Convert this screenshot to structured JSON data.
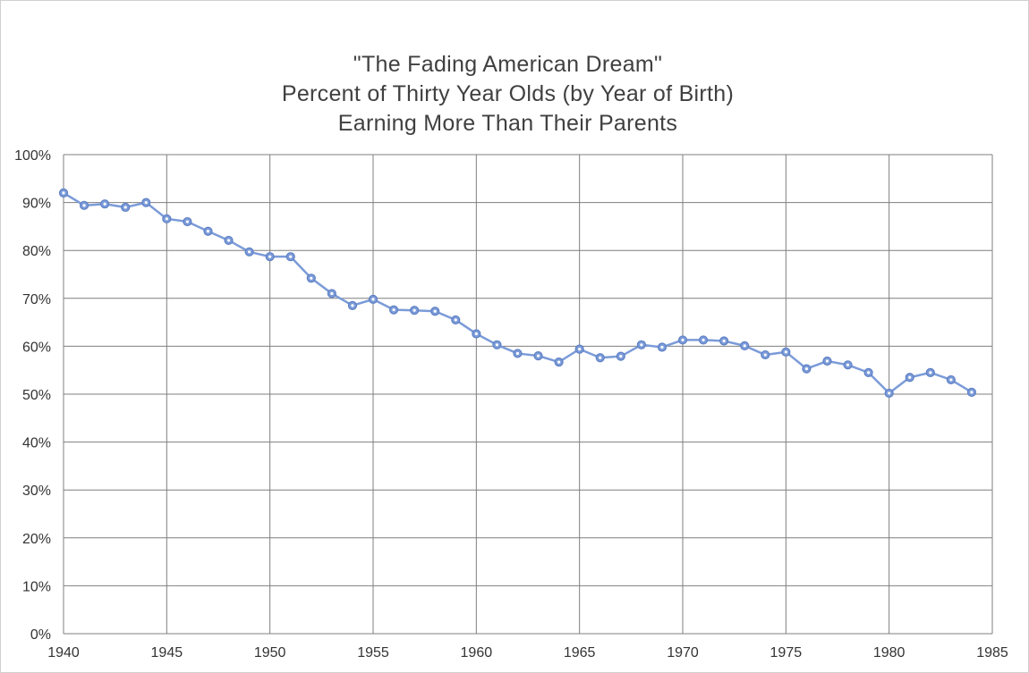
{
  "chart_data": {
    "type": "line",
    "title_lines": [
      "\"The Fading American Dream\"",
      "Percent of Thirty Year Olds (by Year of Birth)",
      "Earning More Than Their Parents"
    ],
    "xlabel": "",
    "ylabel": "",
    "xlim": [
      1940,
      1985
    ],
    "ylim": [
      0,
      100
    ],
    "x_ticks": [
      "1940",
      "1945",
      "1950",
      "1955",
      "1960",
      "1965",
      "1970",
      "1975",
      "1980",
      "1985"
    ],
    "y_ticks": [
      "0%",
      "10%",
      "20%",
      "30%",
      "40%",
      "50%",
      "60%",
      "70%",
      "80%",
      "90%",
      "100%"
    ],
    "grid": true,
    "legend": "none",
    "x": [
      1940,
      1941,
      1942,
      1943,
      1944,
      1945,
      1946,
      1947,
      1948,
      1949,
      1950,
      1951,
      1952,
      1953,
      1954,
      1955,
      1956,
      1957,
      1958,
      1959,
      1960,
      1961,
      1962,
      1963,
      1964,
      1965,
      1966,
      1967,
      1968,
      1969,
      1970,
      1971,
      1972,
      1973,
      1974,
      1975,
      1976,
      1977,
      1978,
      1979,
      1980,
      1981,
      1982,
      1983,
      1984
    ],
    "series": [
      {
        "color": "#7b9bd8",
        "values": [
          92,
          89.4,
          89.7,
          89,
          90,
          86.6,
          86,
          84,
          82.1,
          79.7,
          78.7,
          78.7,
          74.2,
          71,
          68.5,
          69.8,
          67.6,
          67.5,
          67.3,
          65.5,
          62.6,
          60.3,
          58.5,
          58,
          56.7,
          59.4,
          57.6,
          57.9,
          60.3,
          59.8,
          61.3,
          61.3,
          61.1,
          60.1,
          58.2,
          58.8,
          55.3,
          56.9,
          56.1,
          54.5,
          50.2,
          53.5,
          54.5,
          53,
          50.4
        ]
      }
    ]
  }
}
